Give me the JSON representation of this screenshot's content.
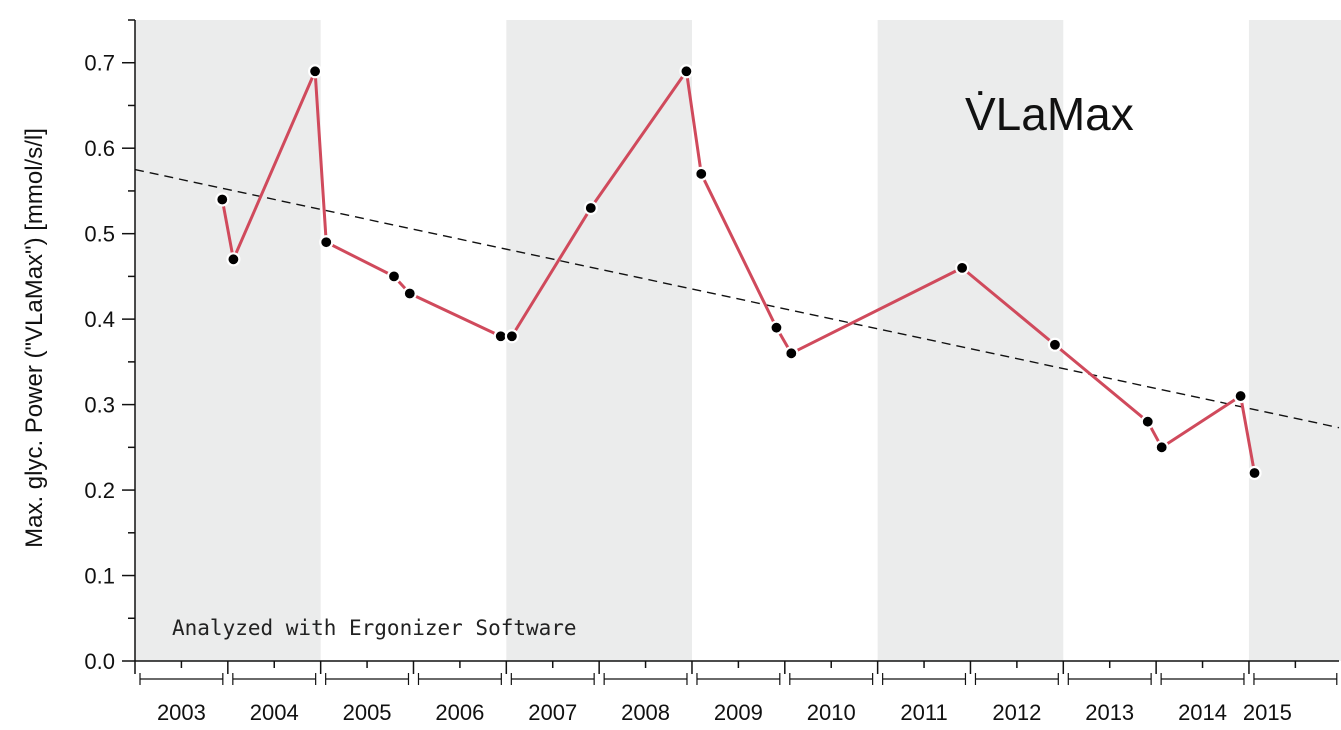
{
  "chart_data": {
    "type": "line",
    "title": "V̇LaMax",
    "xlabel": "",
    "ylabel": "Max. glyc. Power (\"VLaMax\") [mmol/s/l]",
    "annotation": "Analyzed with Ergonizer Software",
    "ylim": [
      0,
      0.75
    ],
    "xlim": [
      2003.0,
      2015.97
    ],
    "y_ticks": [
      "0.0",
      "0.1",
      "0.2",
      "0.3",
      "0.4",
      "0.5",
      "0.6",
      "0.7"
    ],
    "x_tick_labels": [
      "2003",
      "2004",
      "2005",
      "2006",
      "2007",
      "2008",
      "2009",
      "2010",
      "2011",
      "2012",
      "2013",
      "2014",
      "2015"
    ],
    "shaded_year_bands": [
      [
        2003,
        2005
      ],
      [
        2007,
        2009
      ],
      [
        2011,
        2013
      ],
      [
        2015,
        2016
      ]
    ],
    "grid": false,
    "colors": {
      "line": "#d04a5c",
      "trend": "#111111",
      "band": "#ebecec",
      "point": "#000000"
    },
    "series": [
      {
        "x": [
          2003.94,
          2004.06,
          2004.94,
          2005.06,
          2005.79,
          2005.96,
          2006.94,
          2007.06,
          2007.91,
          2008.94,
          2009.1,
          2009.91,
          2010.07,
          2011.91,
          2012.91,
          2013.91,
          2014.06,
          2014.91,
          2015.06
        ],
        "y": [
          0.54,
          0.47,
          0.69,
          0.49,
          0.45,
          0.43,
          0.38,
          0.38,
          0.53,
          0.69,
          0.57,
          0.39,
          0.36,
          0.46,
          0.37,
          0.28,
          0.25,
          0.31,
          0.22
        ]
      }
    ],
    "trend": {
      "x": [
        2003.0,
        2015.97
      ],
      "y": [
        0.575,
        0.273
      ]
    }
  }
}
